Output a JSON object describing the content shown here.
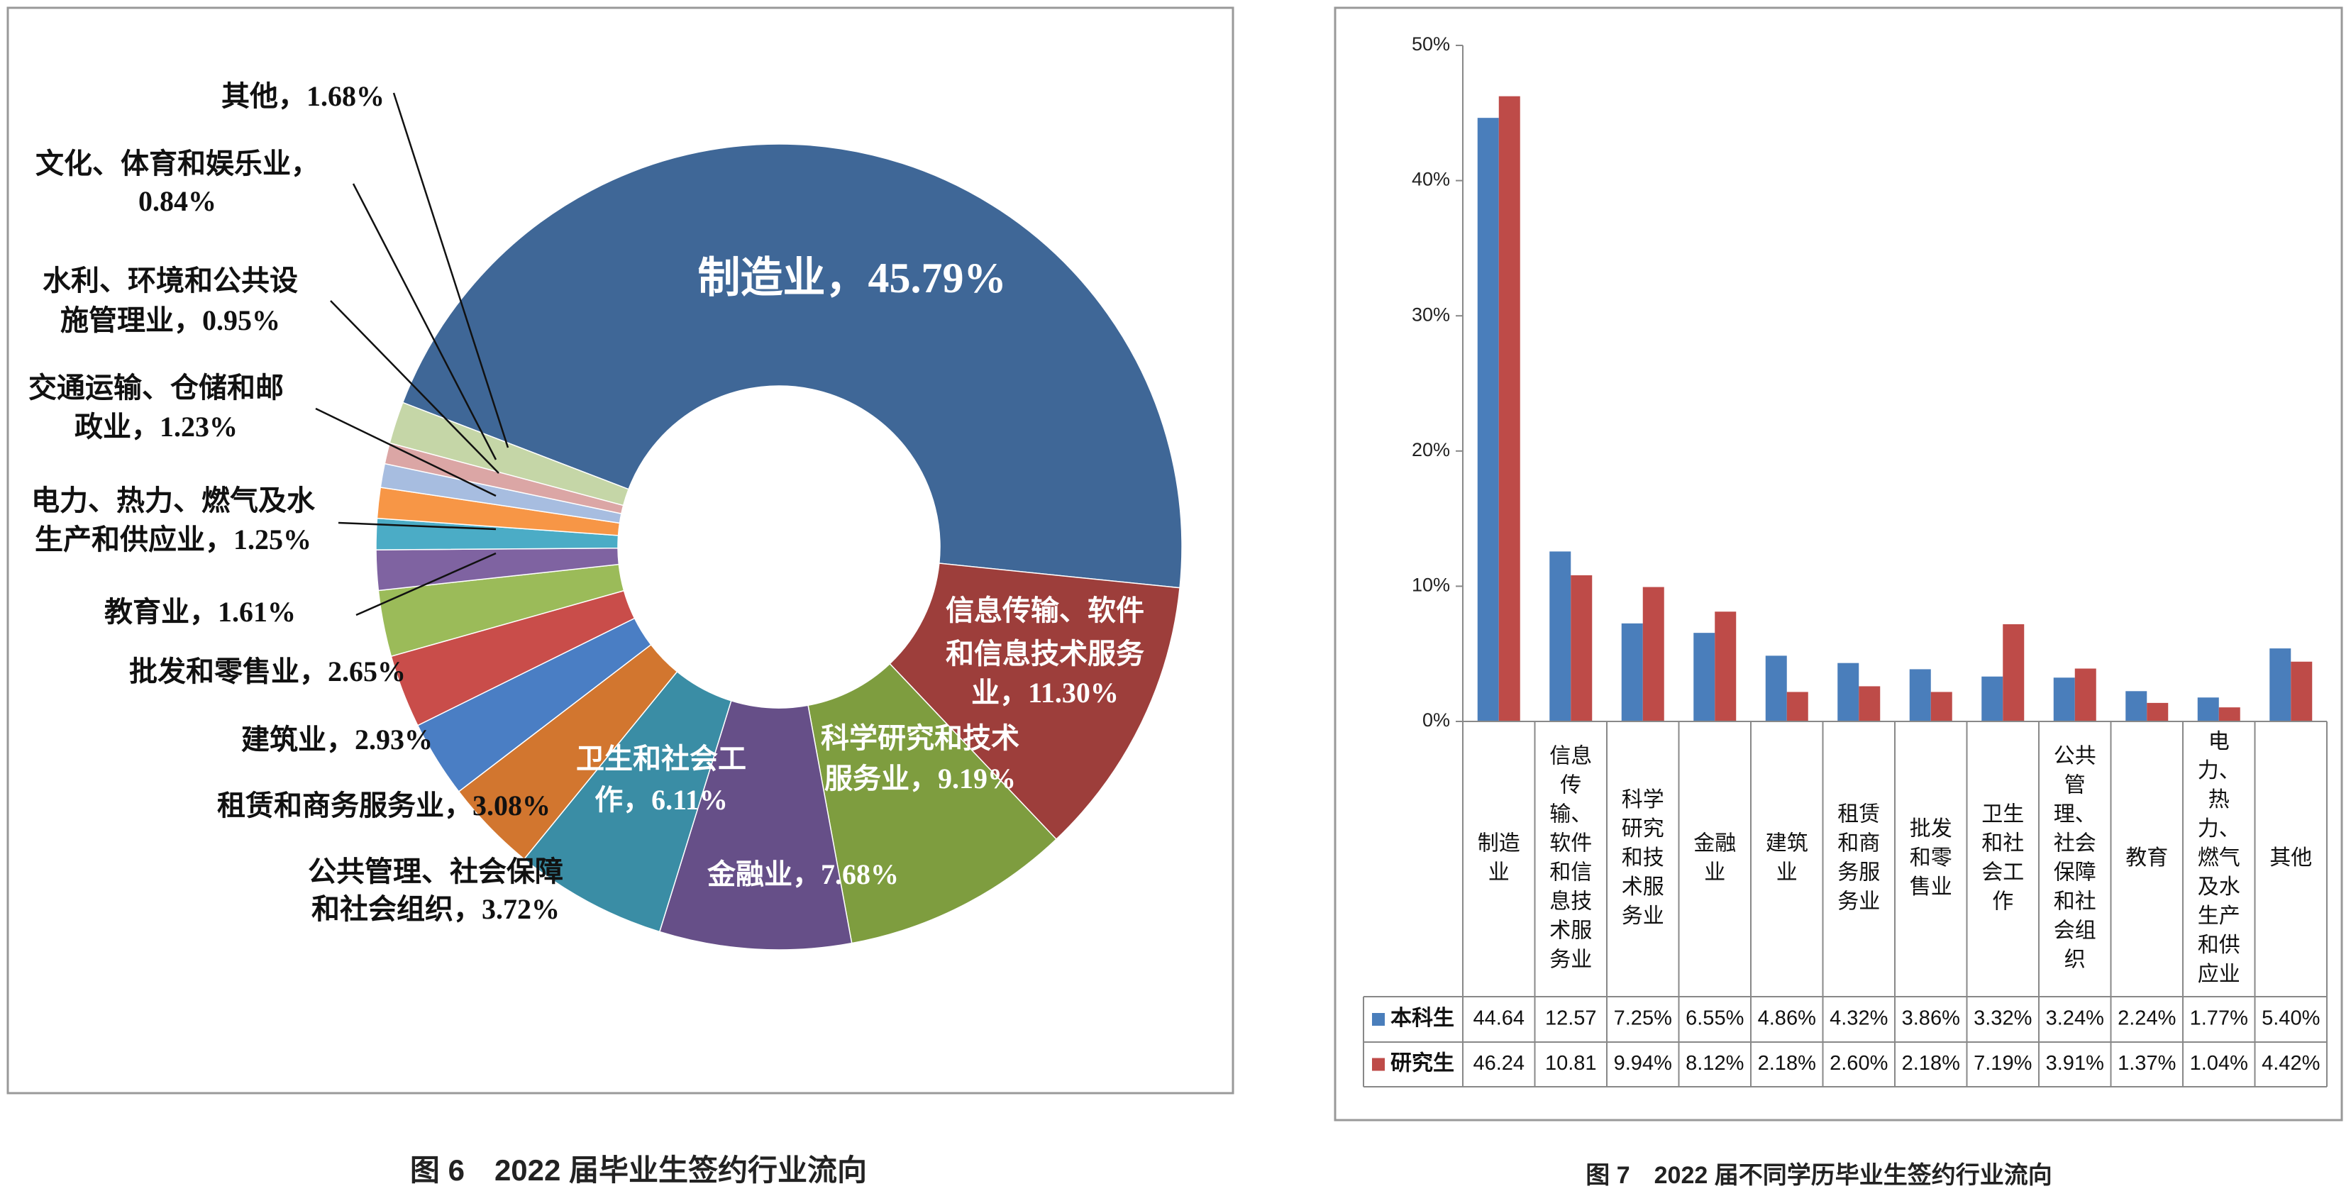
{
  "chart_data": [
    {
      "type": "donut",
      "title": "图 6　2022 届毕业生签约行业流向",
      "values": [
        45.79,
        11.3,
        9.19,
        7.68,
        6.11,
        3.72,
        3.08,
        2.93,
        2.65,
        1.61,
        1.25,
        1.23,
        0.95,
        0.84,
        1.68
      ],
      "value_labels": [
        [
          "制造业，45.79%"
        ],
        [
          "信息传输、软件",
          "和信息技术服务",
          "业，11.30%"
        ],
        [
          "科学研究和技术",
          "服务业，9.19%"
        ],
        [
          "金融业，7.68%"
        ],
        [
          "卫生和社会工",
          "作，6.11%"
        ],
        [
          "公共管理、社会保障",
          "和社会组织，3.72%"
        ],
        [
          "租赁和商务服务业，3.08%"
        ],
        [
          "建筑业，2.93%"
        ],
        [
          "批发和零售业，2.65%"
        ],
        [
          "教育业，1.61%"
        ],
        [
          "电力、热力、燃气及水",
          "生产和供应业，1.25%"
        ],
        [
          "交通运输、仓储和邮",
          "政业，1.23%"
        ],
        [
          "水利、环境和公共设",
          "施管理业，0.95%"
        ],
        [
          "文化、体育和娱乐业，",
          "0.84%"
        ],
        [
          "其他，1.68%"
        ]
      ],
      "colors": [
        "#3f6797",
        "#9d3e3b",
        "#7e9d3f",
        "#664f88",
        "#3a8da5",
        "#d2762f",
        "#4a7ec4",
        "#c94d4a",
        "#9bbb59",
        "#7f63a1",
        "#4bacc6",
        "#f79646",
        "#a7bde0",
        "#dba6a5",
        "#c5d6a7"
      ]
    },
    {
      "type": "bar",
      "title": "图 7　2022 届不同学历毕业生签约行业流向",
      "categories": [
        [
          "制造",
          "业"
        ],
        [
          "信息",
          "传",
          "输、",
          "软件",
          "和信",
          "息技",
          "术服",
          "务业"
        ],
        [
          "科学",
          "研究",
          "和技",
          "术服",
          "务业"
        ],
        [
          "金融",
          "业"
        ],
        [
          "建筑",
          "业"
        ],
        [
          "租赁",
          "和商",
          "务服",
          "务业"
        ],
        [
          "批发",
          "和零",
          "售业"
        ],
        [
          "卫生",
          "和社",
          "会工",
          "作"
        ],
        [
          "公共",
          "管",
          "理、",
          "社会",
          "保障",
          "和社",
          "会组",
          "织"
        ],
        [
          "教育"
        ],
        [
          "电",
          "力、",
          "热",
          "力、",
          "燃气",
          "及水",
          "生产",
          "和供",
          "应业"
        ],
        [
          "其他"
        ]
      ],
      "series": [
        {
          "name": "本科生",
          "color": "#4a7ebb",
          "values": [
            44.64,
            12.57,
            7.25,
            6.55,
            4.86,
            4.32,
            3.86,
            3.32,
            3.24,
            2.24,
            1.77,
            5.4
          ],
          "value_labels": [
            "44.64",
            "12.57",
            "7.25%",
            "6.55%",
            "4.86%",
            "4.32%",
            "3.86%",
            "3.32%",
            "3.24%",
            "2.24%",
            "1.77%",
            "5.40%"
          ]
        },
        {
          "name": "研究生",
          "color": "#be4b48",
          "values": [
            46.24,
            10.81,
            9.94,
            8.12,
            2.18,
            2.6,
            2.18,
            7.19,
            3.91,
            1.37,
            1.04,
            4.42
          ],
          "value_labels": [
            "46.24",
            "10.81",
            "9.94%",
            "8.12%",
            "2.18%",
            "2.60%",
            "2.18%",
            "7.19%",
            "3.91%",
            "1.37%",
            "1.04%",
            "4.42%"
          ]
        }
      ],
      "ylim": [
        0,
        50
      ],
      "yticks": [
        {
          "value": 0,
          "label": "0%"
        },
        {
          "value": 10,
          "label": "10%"
        },
        {
          "value": 20,
          "label": "20%"
        },
        {
          "value": 30,
          "label": "30%"
        },
        {
          "value": 40,
          "label": "40%"
        },
        {
          "value": 50,
          "label": "50%"
        }
      ],
      "grid": false
    }
  ]
}
